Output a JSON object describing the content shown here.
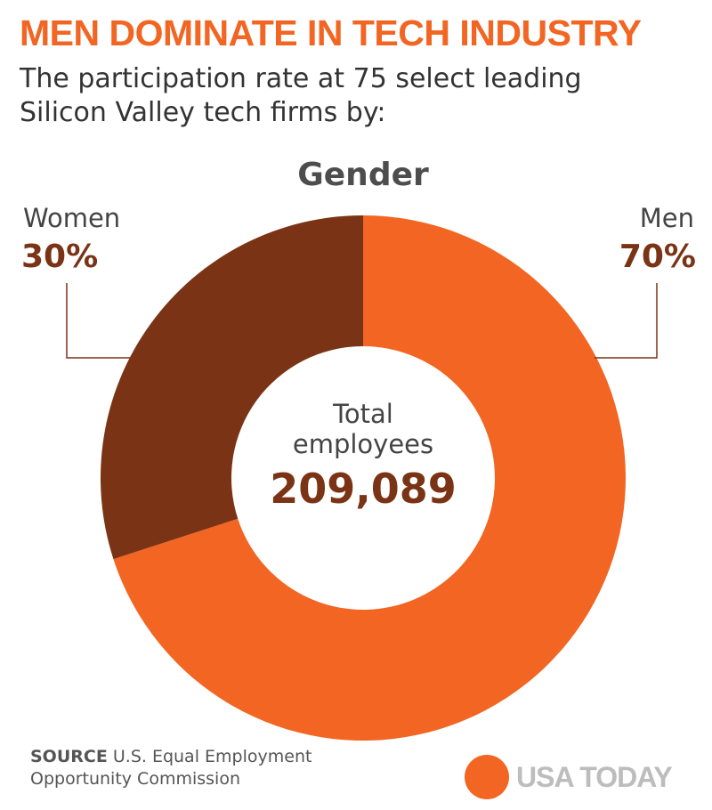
{
  "header": {
    "headline": "MEN DOMINATE IN TECH INDUSTRY",
    "subhead_line1": "The participation rate at 75 select leading",
    "subhead_line2": "Silicon Valley tech firms by:"
  },
  "chart_data": {
    "type": "pie",
    "title": "Gender",
    "categories": [
      "Men",
      "Women"
    ],
    "values": [
      70,
      30
    ],
    "value_labels": [
      "70%",
      "30%"
    ],
    "colors": [
      "#f26522",
      "#7a3415"
    ],
    "donut": true,
    "center": {
      "label_line1": "Total",
      "label_line2": "employees",
      "value": "209,089"
    }
  },
  "footer": {
    "source_key": "SOURCE",
    "source_line1": " U.S. Equal Employment",
    "source_line2": "Opportunity Commission",
    "logo_text": "USA TODAY",
    "logo_color": "#f26522"
  }
}
